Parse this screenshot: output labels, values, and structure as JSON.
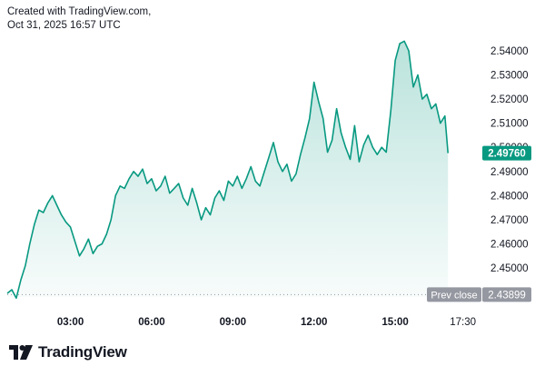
{
  "header": {
    "credit_line": "Created with TradingView.com,",
    "timestamp_line": "Oct 31, 2025 16:57 UTC"
  },
  "footer": {
    "brand": "TradingView"
  },
  "colors": {
    "line": "#089981",
    "area_top": "#089981",
    "price_label_bg": "#089981",
    "prev_close_bg": "#9598a1",
    "prev_close_line": "#9598a1",
    "text": "#131722"
  },
  "chart_data": {
    "type": "area",
    "title": "",
    "xlabel": "",
    "ylabel": "",
    "grid": false,
    "ylim": [
      2.438,
      2.546
    ],
    "xlim": [
      "00:40",
      "18:05"
    ],
    "x_ticks": [
      {
        "label": "03:00",
        "time": "03:00"
      },
      {
        "label": "06:00",
        "time": "06:00"
      },
      {
        "label": "09:00",
        "time": "09:00"
      },
      {
        "label": "12:00",
        "time": "12:00"
      },
      {
        "label": "15:00",
        "time": "15:00"
      },
      {
        "label": "17:30",
        "time": "17:30"
      }
    ],
    "y_ticks": [
      {
        "label": "2.54000",
        "value": 2.54
      },
      {
        "label": "2.53000",
        "value": 2.53
      },
      {
        "label": "2.52000",
        "value": 2.52
      },
      {
        "label": "2.51000",
        "value": 2.51
      },
      {
        "label": "2.50000",
        "value": 2.5
      },
      {
        "label": "2.49000",
        "value": 2.49
      },
      {
        "label": "2.48000",
        "value": 2.48
      },
      {
        "label": "2.47000",
        "value": 2.47
      },
      {
        "label": "2.46000",
        "value": 2.46
      },
      {
        "label": "2.45000",
        "value": 2.45
      }
    ],
    "last_price": {
      "label": "2.49760",
      "value": 2.4976
    },
    "prev_close": {
      "title": "Prev close",
      "label": "2.43899",
      "value": 2.43899
    },
    "series": [
      {
        "x": [
          "00:40",
          "00:50",
          "01:00",
          "01:10",
          "01:20",
          "01:30",
          "01:40",
          "01:50",
          "02:00",
          "02:10",
          "02:20",
          "02:30",
          "02:40",
          "02:50",
          "03:00",
          "03:10",
          "03:20",
          "03:30",
          "03:40",
          "03:50",
          "04:00",
          "04:10",
          "04:20",
          "04:30",
          "04:40",
          "04:50",
          "05:00",
          "05:10",
          "05:20",
          "05:30",
          "05:40",
          "05:50",
          "06:00",
          "06:10",
          "06:20",
          "06:30",
          "06:40",
          "06:50",
          "07:00",
          "07:10",
          "07:20",
          "07:30",
          "07:40",
          "07:50",
          "08:00",
          "08:10",
          "08:20",
          "08:30",
          "08:40",
          "08:50",
          "09:00",
          "09:10",
          "09:20",
          "09:30",
          "09:40",
          "09:50",
          "10:00",
          "10:10",
          "10:20",
          "10:30",
          "10:40",
          "10:50",
          "11:00",
          "11:10",
          "11:20",
          "11:30",
          "11:40",
          "11:50",
          "12:00",
          "12:10",
          "12:20",
          "12:30",
          "12:40",
          "12:50",
          "13:00",
          "13:10",
          "13:20",
          "13:30",
          "13:40",
          "13:50",
          "14:00",
          "14:10",
          "14:20",
          "14:30",
          "14:40",
          "14:50",
          "15:00",
          "15:10",
          "15:20",
          "15:30",
          "15:40",
          "15:50",
          "16:00",
          "16:10",
          "16:20",
          "16:30",
          "16:40",
          "16:50",
          "16:57"
        ],
        "values": [
          2.4395,
          2.441,
          2.4375,
          2.445,
          2.451,
          2.46,
          2.468,
          2.474,
          2.473,
          2.477,
          2.48,
          2.476,
          2.472,
          2.469,
          2.467,
          2.461,
          2.455,
          2.458,
          2.462,
          2.456,
          2.459,
          2.46,
          2.464,
          2.47,
          2.48,
          2.484,
          2.483,
          2.487,
          2.49,
          2.488,
          2.491,
          2.485,
          2.487,
          2.482,
          2.484,
          2.488,
          2.481,
          2.483,
          2.485,
          2.479,
          2.476,
          2.483,
          2.477,
          2.47,
          2.475,
          2.472,
          2.479,
          2.482,
          2.478,
          2.486,
          2.484,
          2.488,
          2.483,
          2.487,
          2.492,
          2.486,
          2.484,
          2.49,
          2.496,
          2.502,
          2.494,
          2.49,
          2.493,
          2.486,
          2.489,
          2.497,
          2.504,
          2.512,
          2.527,
          2.519,
          2.512,
          2.498,
          2.503,
          2.516,
          2.506,
          2.5,
          2.495,
          2.509,
          2.494,
          2.501,
          2.505,
          2.5,
          2.497,
          2.5,
          2.498,
          2.515,
          2.536,
          2.543,
          2.544,
          2.54,
          2.525,
          2.53,
          2.52,
          2.522,
          2.516,
          2.518,
          2.51,
          2.513,
          2.4976
        ]
      }
    ]
  }
}
